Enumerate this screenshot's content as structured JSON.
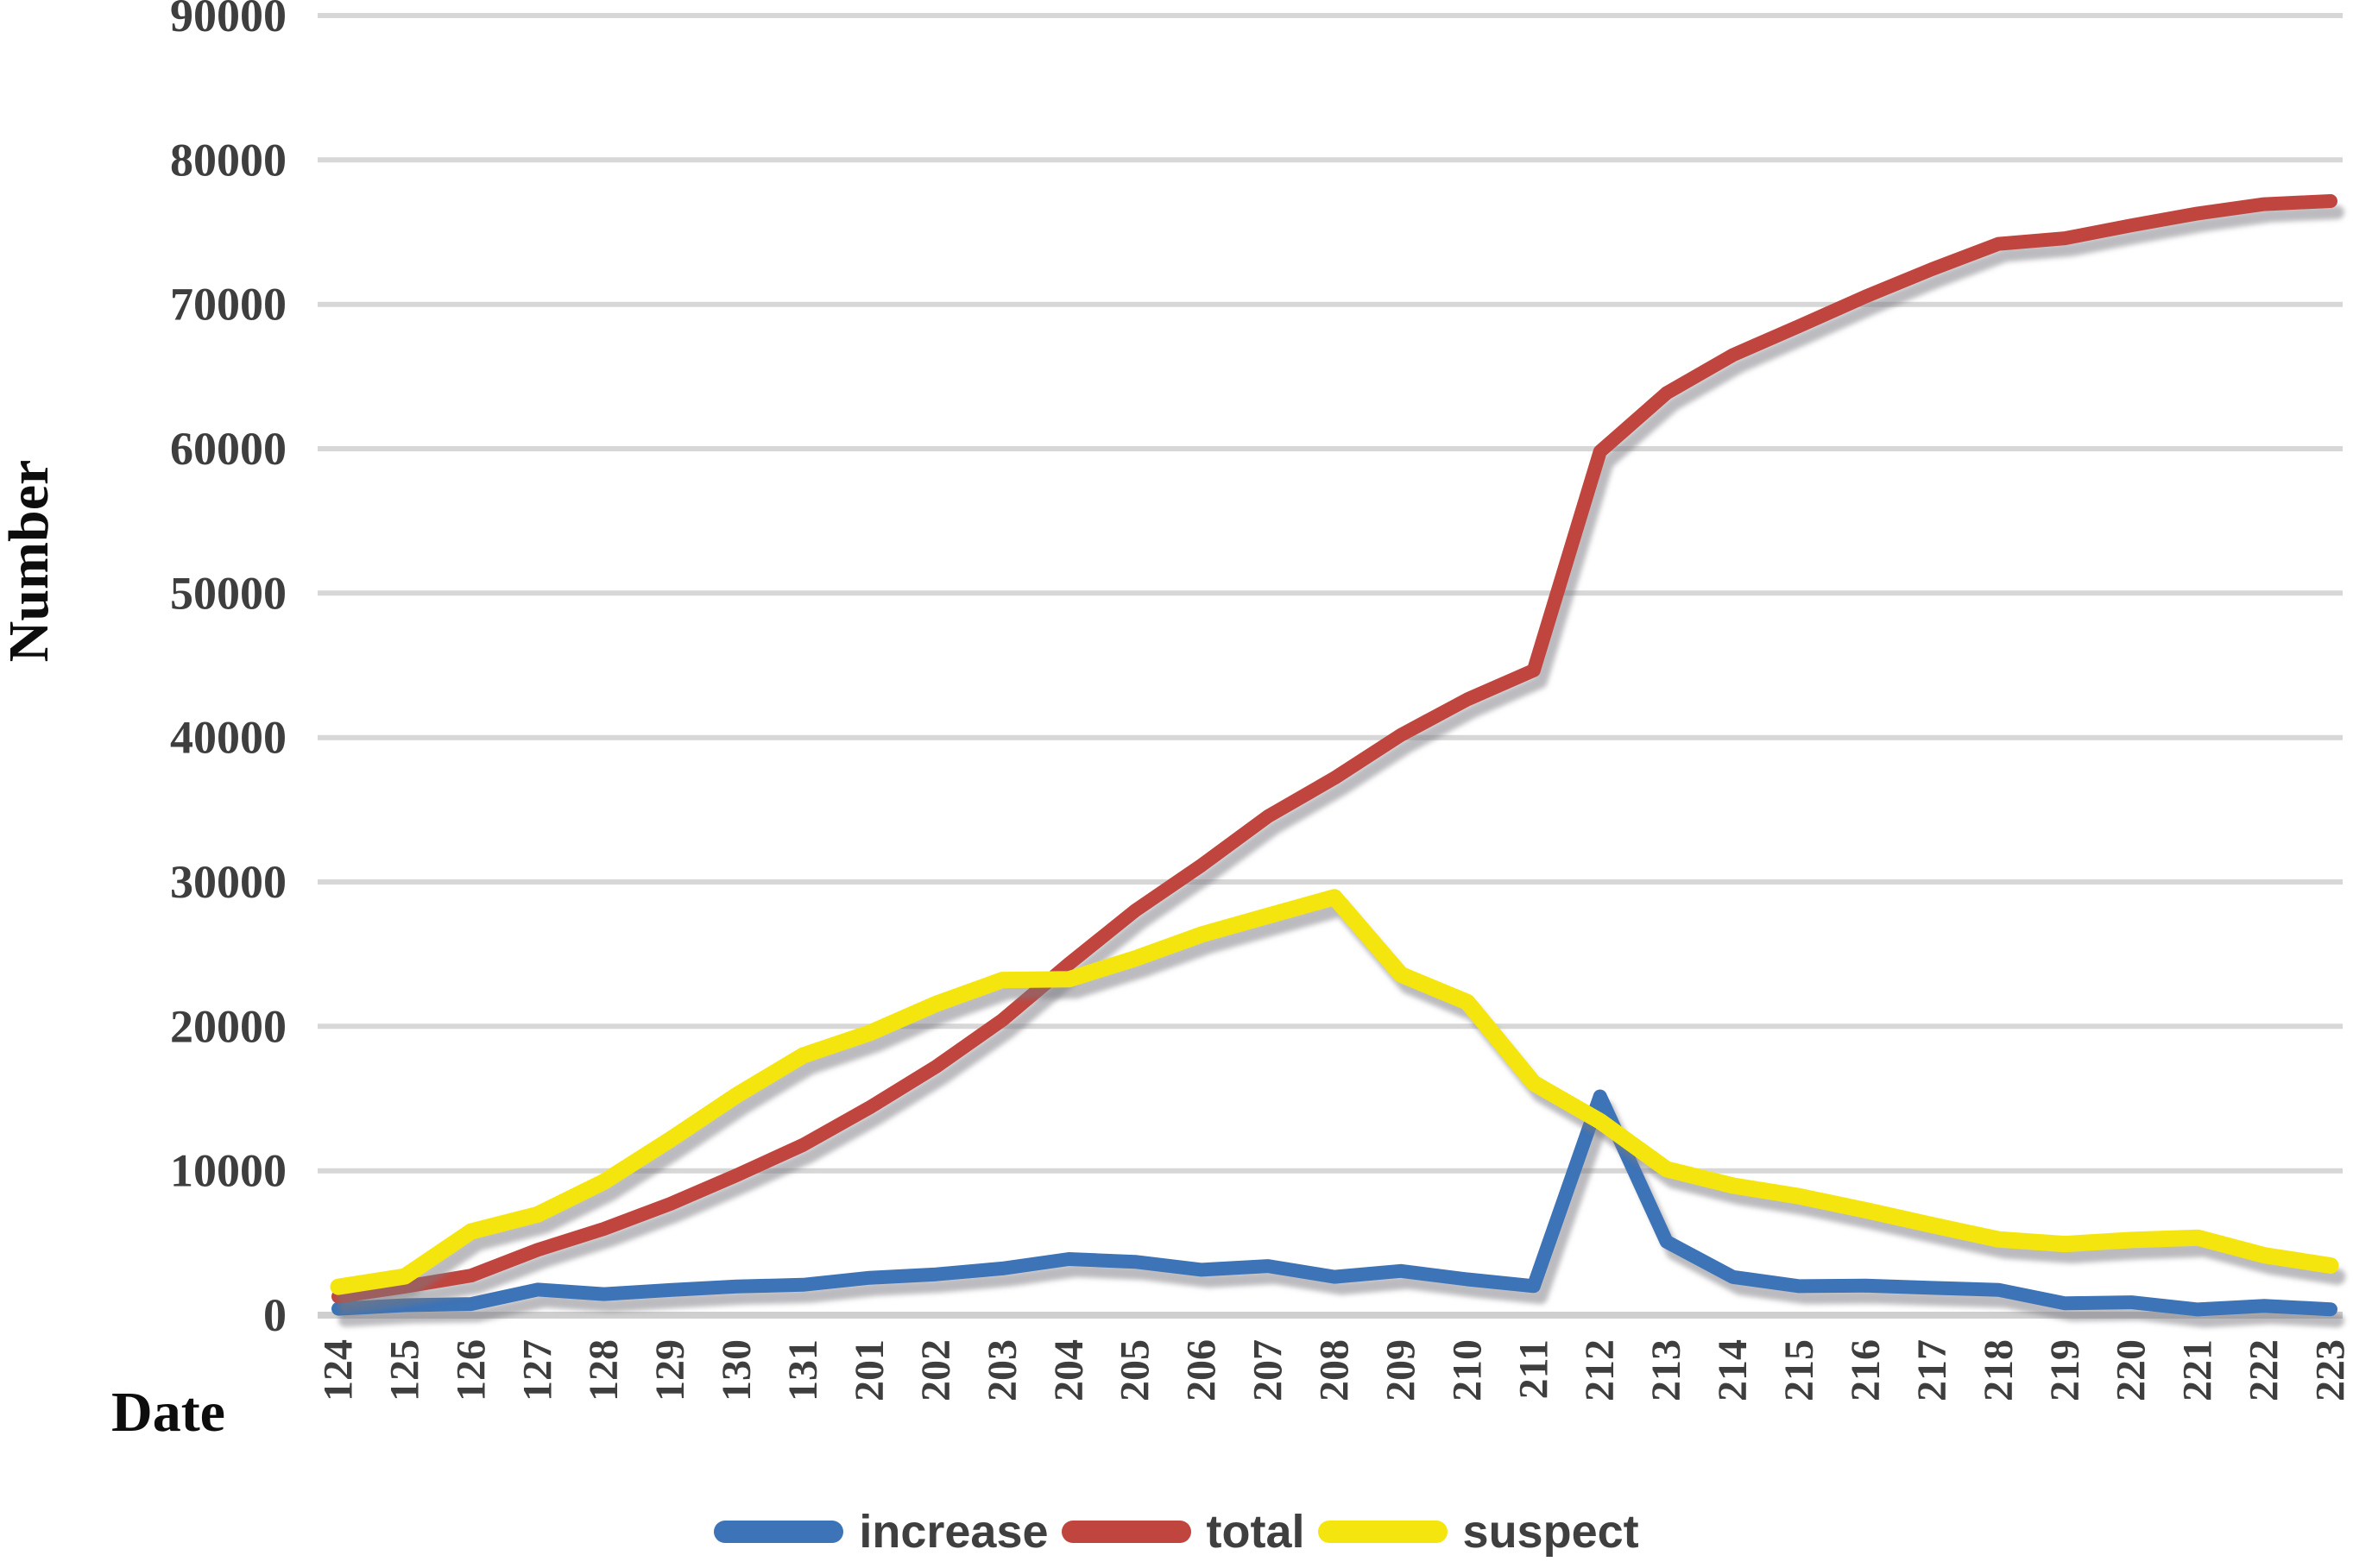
{
  "chart_data": {
    "type": "line",
    "title": "",
    "xlabel": "Date",
    "ylabel": "Number",
    "x": [
      "124",
      "125",
      "126",
      "127",
      "128",
      "129",
      "130",
      "131",
      "201",
      "202",
      "203",
      "204",
      "205",
      "206",
      "207",
      "208",
      "209",
      "210",
      "211",
      "212",
      "213",
      "214",
      "215",
      "216",
      "217",
      "218",
      "219",
      "220",
      "221",
      "222",
      "223"
    ],
    "ylim": [
      0,
      90000
    ],
    "ytick_interval": 10000,
    "grid": "horizontal",
    "legend_position": "bottom",
    "series": [
      {
        "name": "increase",
        "color": "#3D73B7",
        "values": [
          444,
          688,
          769,
          1771,
          1459,
          1737,
          1982,
          2102,
          2590,
          2829,
          3235,
          3887,
          3694,
          3143,
          3399,
          2656,
          3062,
          2478,
          2015,
          15152,
          5090,
          2641,
          2009,
          2048,
          1886,
          1749,
          820,
          889,
          397,
          648,
          409
        ]
      },
      {
        "name": "total",
        "color": "#C0453F",
        "values": [
          1287,
          1975,
          2744,
          4515,
          5974,
          7711,
          9692,
          11791,
          14380,
          17205,
          20438,
          24324,
          28018,
          31161,
          34546,
          37198,
          40171,
          42638,
          44653,
          59804,
          63851,
          66492,
          68500,
          70548,
          72436,
          74185,
          74576,
          75465,
          76288,
          76936,
          77150
        ]
      },
      {
        "name": "suspect",
        "color": "#F5E50E",
        "values": [
          1965,
          2684,
          5794,
          6973,
          9239,
          12167,
          15238,
          17988,
          19544,
          21558,
          23214,
          23260,
          24702,
          26359,
          27657,
          28942,
          23589,
          21675,
          16067,
          13435,
          10109,
          8969,
          8228,
          7264,
          6242,
          5248,
          4922,
          5206,
          5365,
          4148,
          3434
        ]
      }
    ]
  }
}
